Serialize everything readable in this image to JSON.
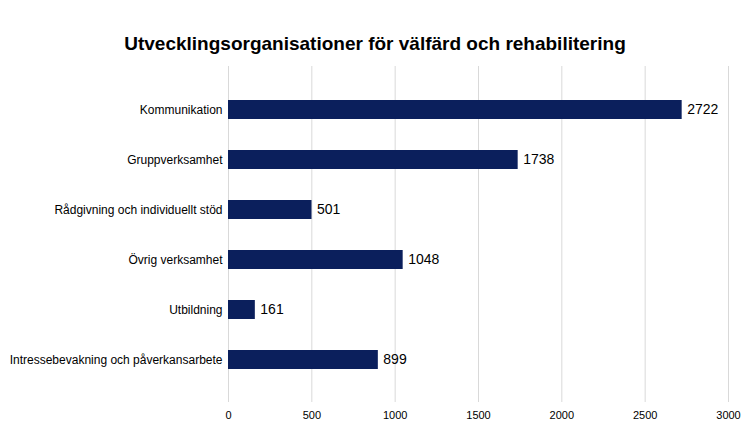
{
  "chart_data": {
    "type": "bar",
    "title": "Utvecklingsorganisationer för välfärd och rehabilitering",
    "orientation": "horizontal",
    "categories": [
      "Kommunikation",
      "Gruppverksamhet",
      "Rådgivning och individuellt stöd",
      "Övrig verksamhet",
      "Utbildning",
      "Intressebevakning och påverkansarbete"
    ],
    "values": [
      2722,
      1738,
      501,
      1048,
      161,
      899
    ],
    "color": "#0b1f5c",
    "xlim": [
      0,
      3000
    ],
    "xticks": [
      0,
      500,
      1000,
      1500,
      2000,
      2500,
      3000
    ],
    "grid": true,
    "data_labels": true
  }
}
